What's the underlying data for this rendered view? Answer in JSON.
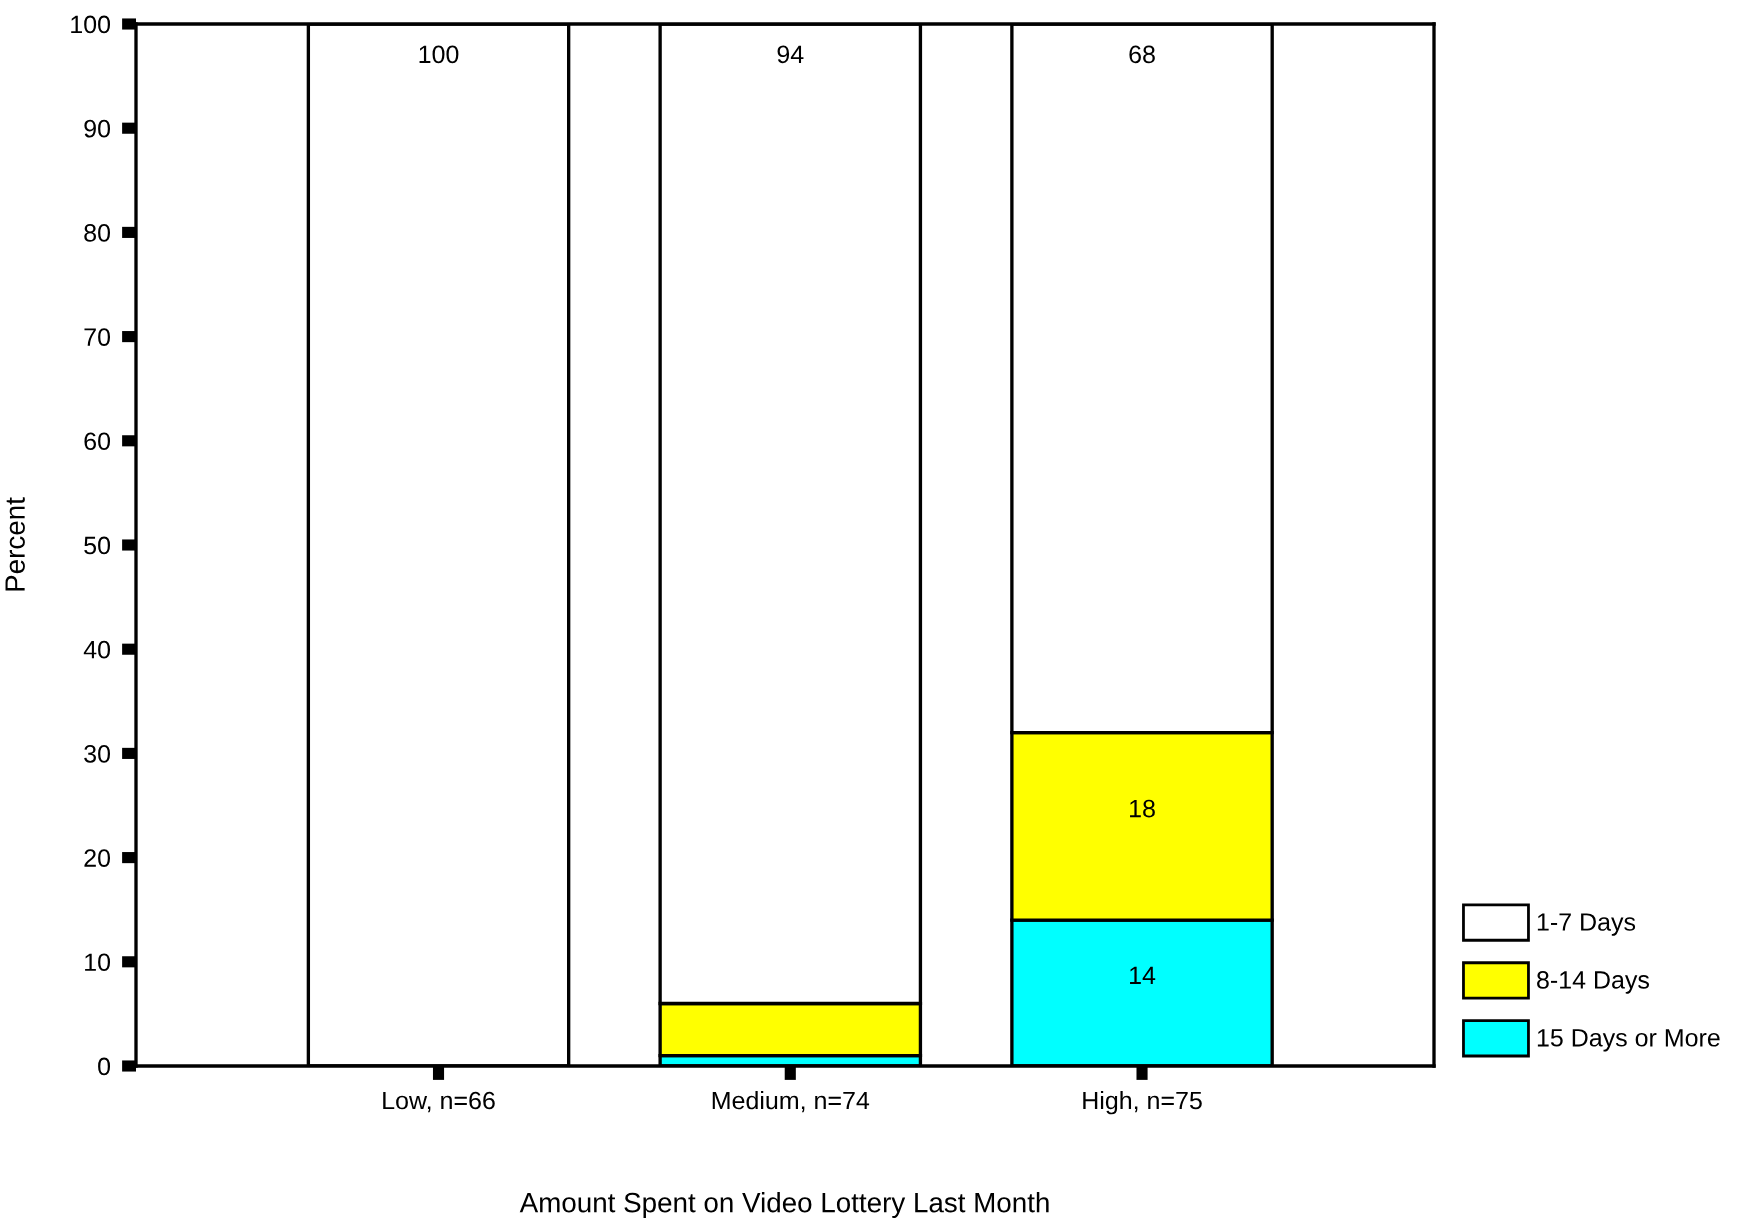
{
  "chart_data": {
    "type": "bar",
    "stacked": true,
    "xlabel": "Amount Spent on Video Lottery Last Month",
    "ylabel": "Percent",
    "categories": [
      "Low, n=66",
      "Medium, n=74",
      "High, n=75"
    ],
    "series": [
      {
        "name": "15 Days or More",
        "color": "#00ffff",
        "values": [
          0,
          1,
          14
        ],
        "value_labels": [
          null,
          null,
          "14"
        ]
      },
      {
        "name": "8-14 Days",
        "color": "#ffff00",
        "values": [
          0,
          5,
          18
        ],
        "value_labels": [
          null,
          null,
          "18"
        ]
      },
      {
        "name": "1-7 Days",
        "color": "#ffffff",
        "values": [
          100,
          94,
          68
        ],
        "value_labels": [
          "100",
          "94",
          "68"
        ]
      }
    ],
    "ylim": [
      0,
      100
    ],
    "yticks": [
      0,
      10,
      20,
      30,
      40,
      50,
      60,
      70,
      80,
      90,
      100
    ],
    "grid": false,
    "legend": "bottom right"
  }
}
